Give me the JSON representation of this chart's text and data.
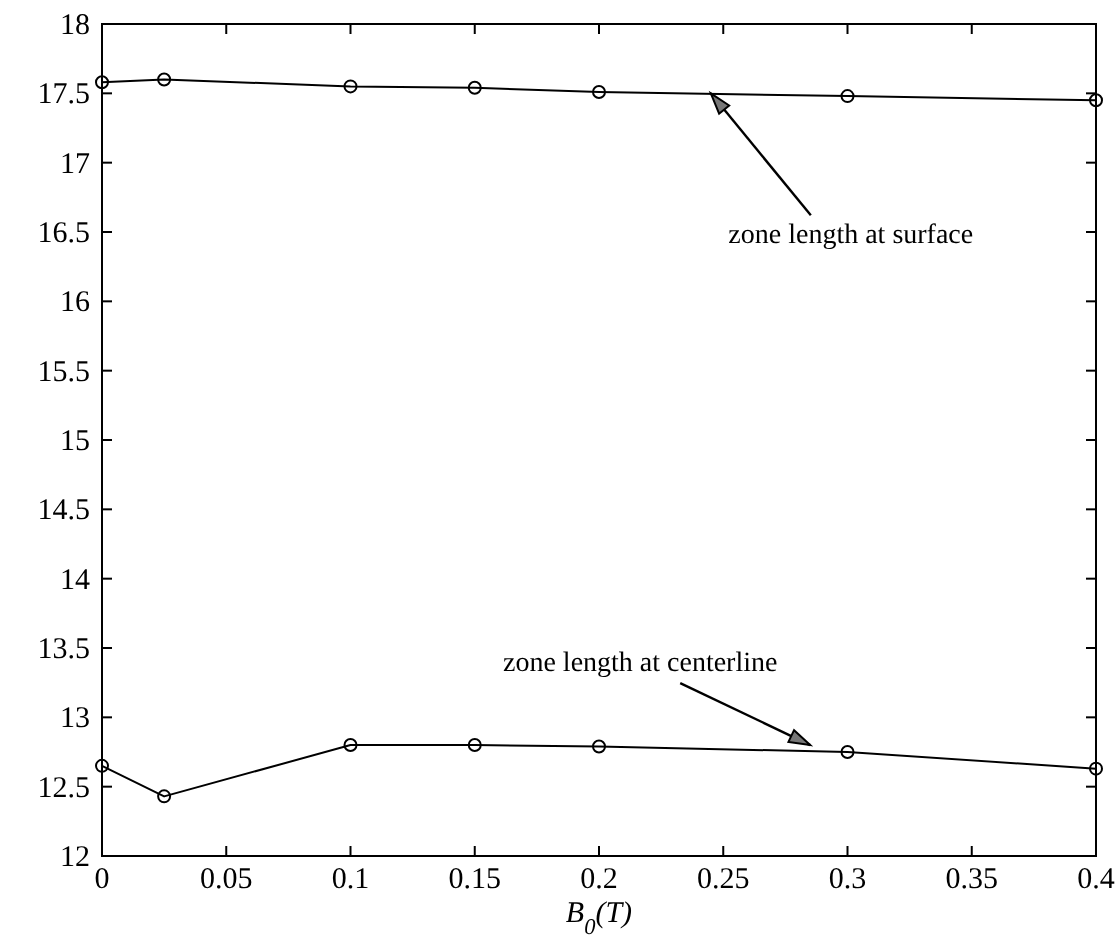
{
  "chart_data": {
    "type": "line",
    "xlabel": "B$_{0}$(T)",
    "marker": "circle",
    "line_style": "solid",
    "grid": false,
    "xlim": [
      0,
      0.4
    ],
    "xticks": [
      0,
      0.05,
      0.1,
      0.15,
      0.2,
      0.25,
      0.3,
      0.35,
      0.4
    ],
    "ylim": [
      12,
      18
    ],
    "yticks": [
      12,
      12.5,
      13,
      13.5,
      14,
      14.5,
      15,
      15.5,
      16,
      16.5,
      17,
      17.5,
      18
    ],
    "series": [
      {
        "color": "#000000",
        "x": [
          0,
          0.025,
          0.1,
          0.15,
          0.2,
          0.3,
          0.4
        ],
        "values": [
          17.58,
          17.6,
          17.55,
          17.54,
          17.51,
          17.48,
          17.45
        ]
      },
      {
        "color": "#000000",
        "x": [
          0,
          0.025,
          0.1,
          0.15,
          0.2,
          0.3,
          0.4
        ],
        "values": [
          12.65,
          12.43,
          12.8,
          12.8,
          12.79,
          12.75,
          12.63
        ]
      }
    ],
    "annotations": [
      {
        "text": "zone length at surface",
        "x": 0.245,
        "y": 17.5
      },
      {
        "text": "zone length at centerline",
        "x": 0.285,
        "y": 12.8
      }
    ]
  }
}
